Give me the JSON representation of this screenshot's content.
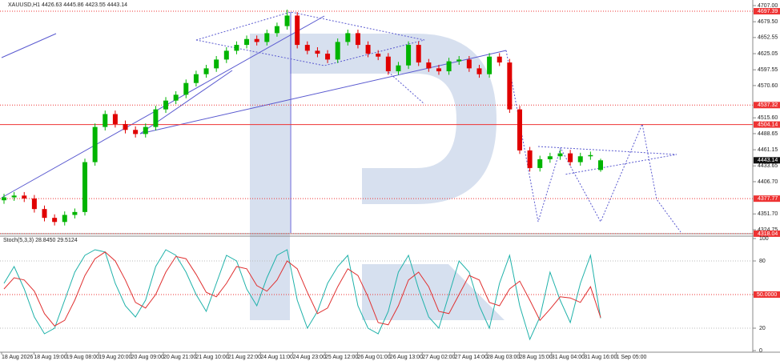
{
  "chart_data": {
    "type": "candlestick",
    "title": "XAUUSD,H1  4426.63 4445.86 4423.55 4443.14",
    "up_color": "#00b400",
    "down_color": "#e00000",
    "xlim": [
      0,
      59
    ],
    "open": [
      4375,
      4380,
      4383,
      4378,
      4360,
      4345,
      4338,
      4350,
      4355,
      4440,
      4500,
      4522,
      4505,
      4495,
      4488,
      4500,
      4530,
      4545,
      4555,
      4575,
      4590,
      4600,
      4615,
      4630,
      4640,
      4650,
      4645,
      4660,
      4672,
      4690,
      4640,
      4630,
      4625,
      4615,
      4645,
      4660,
      4640,
      4625,
      4620,
      4595,
      4605,
      4640,
      4610,
      4600,
      4595,
      4612,
      4615,
      4600,
      4590,
      4620,
      4610,
      4530,
      4460,
      4430,
      4445,
      4450,
      4455,
      4440,
      4450,
      4426.63
    ],
    "high": [
      4386,
      4389,
      4389,
      4384,
      4366,
      4351,
      4356,
      4361,
      4446,
      4506,
      4528,
      4528,
      4511,
      4501,
      4506,
      4536,
      4551,
      4561,
      4581,
      4596,
      4606,
      4621,
      4636,
      4646,
      4656,
      4656,
      4666,
      4678,
      4700,
      4696,
      4646,
      4636,
      4631,
      4651,
      4666,
      4666,
      4646,
      4631,
      4626,
      4611,
      4646,
      4646,
      4616,
      4606,
      4618,
      4621,
      4621,
      4606,
      4626,
      4626,
      4616,
      4536,
      4466,
      4451,
      4456,
      4461,
      4461,
      4456,
      4458,
      4445.86
    ],
    "low": [
      4369,
      4374,
      4372,
      4354,
      4339,
      4332,
      4332,
      4344,
      4349,
      4434,
      4494,
      4499,
      4489,
      4482,
      4482,
      4494,
      4524,
      4539,
      4549,
      4569,
      4584,
      4594,
      4609,
      4624,
      4634,
      4639,
      4639,
      4654,
      4666,
      4634,
      4624,
      4619,
      4609,
      4609,
      4639,
      4634,
      4619,
      4614,
      4589,
      4589,
      4599,
      4604,
      4594,
      4589,
      4589,
      4606,
      4594,
      4584,
      4584,
      4604,
      4524,
      4454,
      4424,
      4424,
      4439,
      4444,
      4434,
      4434,
      4444,
      4423.55
    ],
    "close": [
      4380,
      4383,
      4378,
      4360,
      4345,
      4338,
      4350,
      4355,
      4440,
      4500,
      4522,
      4505,
      4495,
      4488,
      4500,
      4530,
      4545,
      4555,
      4575,
      4590,
      4600,
      4615,
      4630,
      4640,
      4650,
      4645,
      4660,
      4672,
      4690,
      4640,
      4630,
      4625,
      4615,
      4645,
      4660,
      4640,
      4625,
      4620,
      4595,
      4605,
      4640,
      4610,
      4600,
      4595,
      4612,
      4615,
      4600,
      4590,
      4620,
      4610,
      4530,
      4460,
      4430,
      4445,
      4450,
      4455,
      4440,
      4450,
      4452,
      4443.14
    ],
    "ylim": [
      4324.75,
      4707.0
    ],
    "yticks": [
      {
        "value": 4707.0,
        "label": "4707.00"
      },
      {
        "value": 4679.5,
        "label": "4679.50"
      },
      {
        "value": 4652.55,
        "label": "4652.55"
      },
      {
        "value": 4625.05,
        "label": "4625.05"
      },
      {
        "value": 4597.55,
        "label": "4597.55"
      },
      {
        "value": 4570.6,
        "label": "4570.60"
      },
      {
        "value": 4515.6,
        "label": "4515.60"
      },
      {
        "value": 4488.65,
        "label": "4488.65"
      },
      {
        "value": 4461.15,
        "label": "4461.15"
      },
      {
        "value": 4433.65,
        "label": "4433.65"
      },
      {
        "value": 4406.7,
        "label": "4406.70"
      },
      {
        "value": 4351.7,
        "label": "4351.70"
      },
      {
        "value": 4324.75,
        "label": "4324.75"
      }
    ],
    "price_lines": [
      {
        "value": 4697.39,
        "label": "4697.39",
        "style": "dotted"
      },
      {
        "value": 4537.32,
        "label": "4537.32",
        "style": "dotted"
      },
      {
        "value": 4504.14,
        "label": "4504.14",
        "style": "solid"
      },
      {
        "value": 4377.77,
        "label": "4377.77",
        "style": "dotted"
      },
      {
        "value": 4318.04,
        "label": "4318.04",
        "style": "dotted"
      }
    ],
    "last_price": {
      "value": 4443.14,
      "label": "4443.14"
    },
    "x_labels": [
      "18 Aug 2026",
      "18 Aug 19:00",
      "19 Aug 08:00",
      "19 Aug 20:00",
      "20 Aug 09:00",
      "20 Aug 21:00",
      "21 Aug 10:00",
      "21 Aug 22:00",
      "24 Aug 11:00",
      "24 Aug 23:00",
      "25 Aug 12:00",
      "26 Aug 01:00",
      "26 Aug 13:00",
      "27 Aug 02:00",
      "27 Aug 14:00",
      "28 Aug 03:00",
      "28 Aug 15:00",
      "31 Aug 04:00",
      "31 Aug 16:00",
      "1 Sep 05:00"
    ],
    "indicator": {
      "title": "Stoch(5,3,3) 28.8450 29.5124",
      "ylim": [
        0,
        100
      ],
      "yticks": [
        0,
        20,
        50,
        80,
        100
      ],
      "level": {
        "value": 50,
        "label": "50.0000"
      },
      "series": [
        {
          "name": "Main",
          "color": "#20b2aa",
          "values": [
            60,
            75,
            55,
            30,
            15,
            20,
            45,
            70,
            85,
            90,
            88,
            60,
            40,
            30,
            45,
            75,
            90,
            85,
            70,
            50,
            35,
            60,
            85,
            80,
            55,
            40,
            65,
            85,
            90,
            45,
            20,
            35,
            60,
            75,
            85,
            40,
            20,
            15,
            35,
            70,
            85,
            55,
            30,
            20,
            50,
            80,
            70,
            40,
            20,
            60,
            85,
            40,
            10,
            30,
            70,
            45,
            25,
            60,
            85,
            28.845
          ]
        },
        {
          "name": "Signal",
          "color": "#e03030",
          "values": [
            55,
            65,
            63,
            53,
            33,
            22,
            27,
            45,
            67,
            82,
            88,
            80,
            63,
            43,
            38,
            50,
            70,
            84,
            82,
            68,
            52,
            48,
            60,
            75,
            73,
            58,
            53,
            63,
            80,
            73,
            52,
            33,
            38,
            57,
            73,
            67,
            48,
            25,
            23,
            40,
            63,
            70,
            57,
            35,
            33,
            50,
            67,
            63,
            43,
            40,
            55,
            62,
            45,
            27,
            37,
            48,
            47,
            43,
            57,
            29.5124
          ]
        }
      ]
    }
  }
}
